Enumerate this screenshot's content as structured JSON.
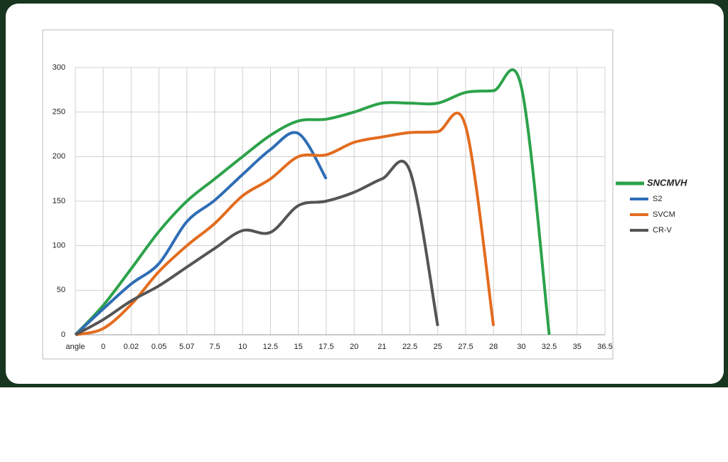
{
  "chart_data": {
    "type": "line",
    "categories": [
      "angle",
      "0",
      "0.02",
      "0.05",
      "5.07",
      "7.5",
      "10",
      "12.5",
      "15",
      "17.5",
      "20",
      "21",
      "22.5",
      "25",
      "27.5",
      "28",
      "30",
      "32.5",
      "35",
      "36.5"
    ],
    "series": [
      {
        "name": "SNCMVH",
        "color": "#2ca24a",
        "values": [
          0,
          33,
          74,
          116,
          150,
          175,
          200,
          224,
          240,
          242,
          250,
          260,
          260,
          260,
          272,
          274,
          278,
          0,
          null,
          null
        ]
      },
      {
        "name": "S2",
        "color": "#2f6db5",
        "values": [
          0,
          29,
          57,
          80,
          127,
          151,
          180,
          208,
          226,
          175,
          null,
          null,
          null,
          null,
          null,
          null,
          null,
          null,
          null,
          null
        ]
      },
      {
        "name": "SVCM",
        "color": "#e36c1f",
        "values": [
          0,
          7,
          34,
          71,
          100,
          125,
          156,
          175,
          200,
          202,
          216,
          222,
          227,
          228,
          234,
          10,
          null,
          null,
          null,
          null
        ]
      },
      {
        "name": "CR-V",
        "color": "#555555",
        "values": [
          0,
          17,
          38,
          55,
          76,
          97,
          117,
          115,
          145,
          150,
          160,
          175,
          184,
          10,
          null,
          null,
          null,
          null,
          null,
          null
        ]
      }
    ],
    "ylim": [
      0,
      300
    ],
    "yticks": [
      0,
      50,
      100,
      150,
      200,
      250,
      300
    ],
    "grid": true,
    "legend": "right"
  }
}
